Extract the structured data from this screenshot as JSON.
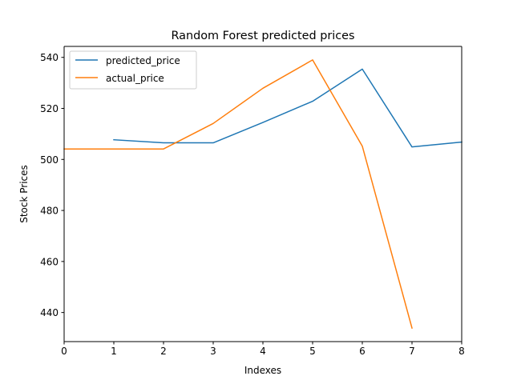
{
  "chart_data": {
    "type": "line",
    "title": "Random Forest predicted prices",
    "xlabel": "Indexes",
    "ylabel": "Stock Prices",
    "xlim": [
      0,
      8
    ],
    "ylim": [
      428.6,
      544.3
    ],
    "xticks": [
      0,
      1,
      2,
      3,
      4,
      5,
      6,
      7,
      8
    ],
    "yticks": [
      440,
      460,
      480,
      500,
      520,
      540
    ],
    "grid": false,
    "legend_position": "upper-left",
    "series": [
      {
        "name": "predicted_price",
        "color": "#1f77b4",
        "x": [
          1,
          2,
          3,
          4,
          5,
          6,
          7,
          8
        ],
        "y": [
          507.7,
          506.5,
          506.5,
          514.5,
          522.8,
          535.4,
          504.9,
          506.8
        ]
      },
      {
        "name": "actual_price",
        "color": "#ff7f0e",
        "x": [
          0,
          1,
          2,
          3,
          4,
          5,
          6,
          7
        ],
        "y": [
          504.1,
          504.1,
          504.1,
          514.1,
          527.9,
          539.0,
          505.2,
          433.9
        ]
      }
    ]
  }
}
